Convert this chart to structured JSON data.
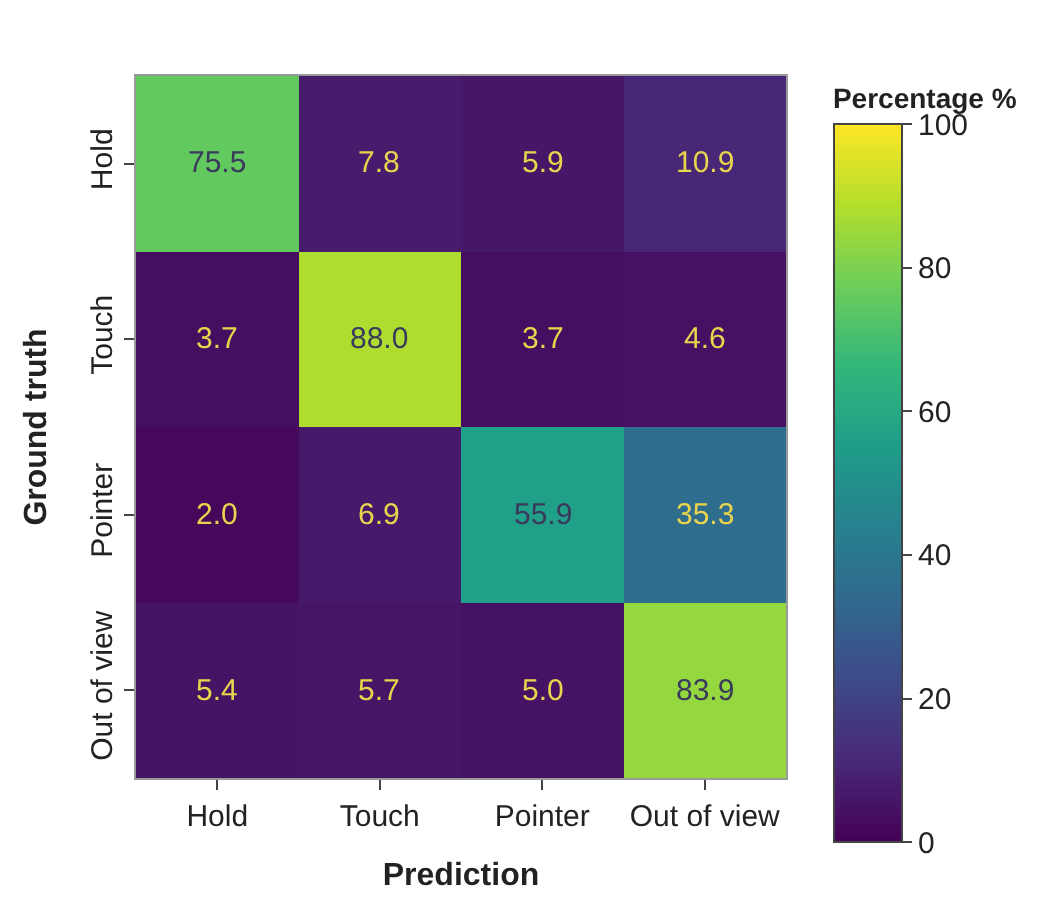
{
  "chart_data": {
    "type": "heatmap",
    "xlabel": "Prediction",
    "ylabel": "Ground truth",
    "clabel": "Percentage %",
    "categories": [
      "Hold",
      "Touch",
      "Pointer",
      "Out of view"
    ],
    "y_categories": [
      "Hold",
      "Touch",
      "Pointer",
      "Out of view"
    ],
    "cells": [
      [
        75.5,
        7.8,
        5.9,
        10.9
      ],
      [
        3.7,
        88.0,
        3.7,
        4.6
      ],
      [
        2.0,
        6.9,
        55.9,
        35.3
      ],
      [
        5.4,
        5.7,
        5.0,
        83.9
      ]
    ],
    "cell_labels": [
      [
        "75.5",
        "7.8",
        "5.9",
        "10.9"
      ],
      [
        "3.7",
        "88.0",
        "3.7",
        "4.6"
      ],
      [
        "2.0",
        "6.9",
        "55.9",
        "35.3"
      ],
      [
        "5.4",
        "5.7",
        "5.0",
        "83.9"
      ]
    ],
    "clim": [
      0,
      100
    ],
    "cticks": [
      0,
      20,
      40,
      60,
      80,
      100
    ],
    "data_labels": true
  }
}
